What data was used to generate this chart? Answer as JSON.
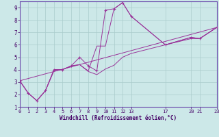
{
  "background_color": "#cce8e8",
  "line_color": "#993399",
  "xlim": [
    0,
    23
  ],
  "ylim": [
    1,
    9.5
  ],
  "xticks": [
    0,
    1,
    2,
    3,
    4,
    5,
    6,
    7,
    8,
    9,
    10,
    11,
    12,
    13,
    17,
    20,
    21,
    23
  ],
  "yticks": [
    1,
    2,
    3,
    4,
    5,
    6,
    7,
    8,
    9
  ],
  "xlabel": "Windchill (Refroidissement éolien,°C)",
  "series1_x": [
    0,
    1,
    2,
    3,
    4,
    5,
    6,
    7,
    8,
    9,
    10,
    11,
    12,
    13,
    17,
    20,
    21,
    23
  ],
  "series1_y": [
    3.1,
    2.1,
    1.5,
    2.3,
    4.0,
    4.0,
    4.3,
    5.0,
    4.3,
    3.9,
    8.8,
    8.9,
    9.4,
    8.3,
    6.0,
    6.6,
    6.5,
    7.4
  ],
  "series2_x": [
    0,
    1,
    2,
    3,
    4,
    5,
    6,
    7,
    8,
    9,
    10,
    11,
    12,
    13,
    17,
    20,
    21,
    23
  ],
  "series2_y": [
    3.1,
    2.1,
    1.5,
    2.3,
    4.0,
    4.0,
    4.3,
    4.4,
    3.9,
    5.9,
    5.9,
    8.9,
    9.4,
    8.3,
    6.0,
    6.6,
    6.5,
    7.4
  ],
  "series3_x": [
    0,
    23
  ],
  "series3_y": [
    3.1,
    7.4
  ],
  "series4_x": [
    0,
    1,
    2,
    3,
    4,
    5,
    6,
    7,
    8,
    9,
    10,
    11,
    12,
    13,
    17,
    20,
    21,
    23
  ],
  "series4_y": [
    3.1,
    2.1,
    1.5,
    2.3,
    3.9,
    4.0,
    4.3,
    4.4,
    3.85,
    3.6,
    4.05,
    4.35,
    5.0,
    5.3,
    6.0,
    6.5,
    6.5,
    7.4
  ]
}
